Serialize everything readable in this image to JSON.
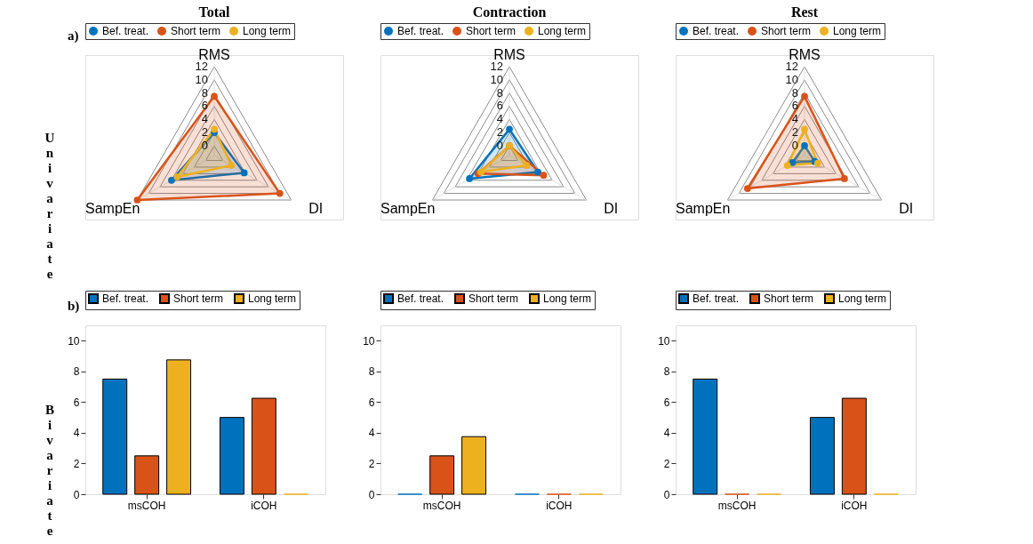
{
  "chart_data": [
    {
      "type": "radar",
      "title": "Total",
      "categories": [
        "RMS",
        "DI",
        "SampEn"
      ],
      "ylim": [
        -1.5,
        12
      ],
      "yticks": [
        0,
        2,
        4,
        6,
        8,
        10,
        12
      ],
      "marker": "circle",
      "legend": "top",
      "annotations": [
        "a)",
        "Univariate"
      ],
      "series": [
        {
          "name": "Bef. treat.",
          "color": "#0072bd",
          "values": [
            2,
            3.75,
            6
          ]
        },
        {
          "name": "Short term",
          "color": "#d95319",
          "values": [
            7.5,
            10,
            12
          ]
        },
        {
          "name": "Long term",
          "color": "#edb120",
          "values": [
            2.5,
            1.5,
            5
          ]
        }
      ]
    },
    {
      "type": "radar",
      "title": "Contraction",
      "categories": [
        "RMS",
        "DI",
        "SampEn"
      ],
      "ylim": [
        -1.5,
        12
      ],
      "yticks": [
        0,
        2,
        4,
        6,
        8,
        10,
        12
      ],
      "marker": "circle",
      "legend": "top",
      "series": [
        {
          "name": "Bef. treat.",
          "color": "#0072bd",
          "values": [
            2.5,
            3.5,
            5.5
          ]
        },
        {
          "name": "Short term",
          "color": "#d95319",
          "values": [
            0,
            4.5,
            4
          ]
        },
        {
          "name": "Long term",
          "color": "#edb120",
          "values": [
            0,
            1.5,
            3.5
          ]
        }
      ]
    },
    {
      "type": "radar",
      "title": "Rest",
      "categories": [
        "RMS",
        "DI",
        "SampEn"
      ],
      "ylim": [
        -1.5,
        12
      ],
      "yticks": [
        0,
        2,
        4,
        6,
        8,
        10,
        12
      ],
      "marker": "circle",
      "legend": "top",
      "series": [
        {
          "name": "Bef. treat.",
          "color": "#0072bd",
          "values": [
            0,
            0.3,
            0.6
          ]
        },
        {
          "name": "Short term",
          "color": "#d95319",
          "values": [
            7.5,
            5.5,
            8.5
          ]
        },
        {
          "name": "Long term",
          "color": "#edb120",
          "values": [
            2.5,
            0.8,
            1.5
          ]
        }
      ]
    },
    {
      "type": "bar",
      "categories": [
        "msCOH",
        "iCOH"
      ],
      "ylim": [
        0,
        11
      ],
      "yticks": [
        0,
        2,
        4,
        6,
        8,
        10
      ],
      "legend": "top",
      "grid": false,
      "annotations": [
        "b)",
        "Bivariate"
      ],
      "series": [
        {
          "name": "Bef. treat.",
          "color": "#0072bd",
          "values": [
            7.5,
            5
          ]
        },
        {
          "name": "Short term",
          "color": "#d95319",
          "values": [
            2.5,
            6.25
          ]
        },
        {
          "name": "Long term",
          "color": "#edb120",
          "values": [
            8.75,
            0
          ]
        }
      ]
    },
    {
      "type": "bar",
      "categories": [
        "msCOH",
        "iCOH"
      ],
      "ylim": [
        0,
        11
      ],
      "yticks": [
        0,
        2,
        4,
        6,
        8,
        10
      ],
      "legend": "top",
      "grid": false,
      "series": [
        {
          "name": "Bef. treat.",
          "color": "#0072bd",
          "values": [
            0,
            0
          ]
        },
        {
          "name": "Short term",
          "color": "#d95319",
          "values": [
            2.5,
            0
          ]
        },
        {
          "name": "Long term",
          "color": "#edb120",
          "values": [
            3.75,
            0
          ]
        }
      ]
    },
    {
      "type": "bar",
      "categories": [
        "msCOH",
        "iCOH"
      ],
      "ylim": [
        0,
        11
      ],
      "yticks": [
        0,
        2,
        4,
        6,
        8,
        10
      ],
      "legend": "top",
      "grid": false,
      "series": [
        {
          "name": "Bef. treat.",
          "color": "#0072bd",
          "values": [
            7.5,
            5
          ]
        },
        {
          "name": "Short term",
          "color": "#d95319",
          "values": [
            0,
            6.25
          ]
        },
        {
          "name": "Long term",
          "color": "#edb120",
          "values": [
            0,
            0
          ]
        }
      ]
    }
  ]
}
